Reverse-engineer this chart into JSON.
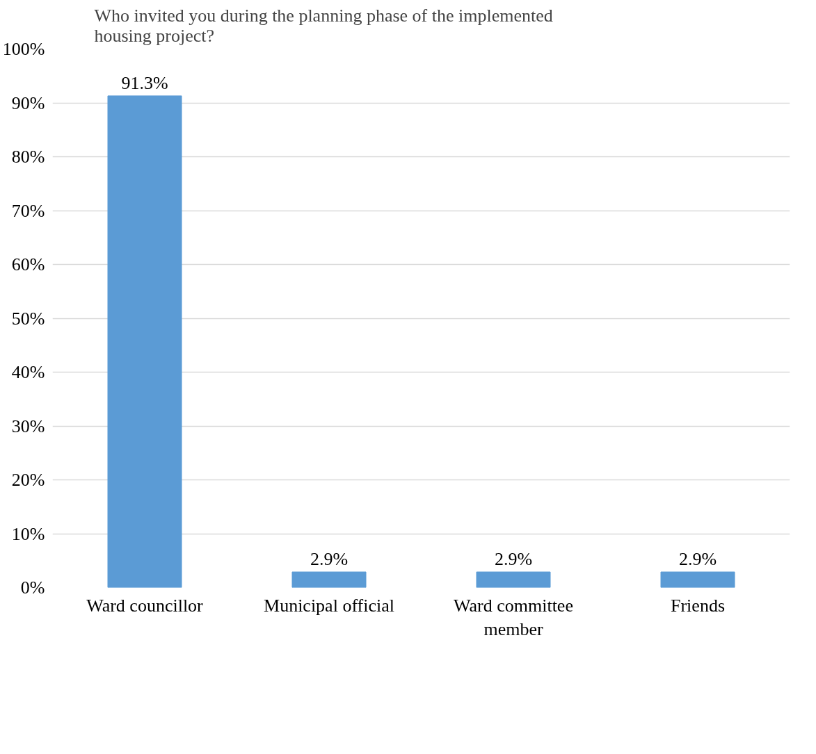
{
  "chart_data": {
    "type": "bar",
    "title": "Who invited you during the planning phase of the implemented housing project?",
    "categories": [
      "Ward councillor",
      "Municipal official",
      "Ward committee member",
      "Friends"
    ],
    "values": [
      91.3,
      2.9,
      2.9,
      2.9
    ],
    "color": "#5b9bd5",
    "value_labels": [
      "91.3%",
      "2.9%",
      "2.9%",
      "2.9%"
    ],
    "ylim": [
      0,
      100
    ],
    "yticks": [
      {
        "value": 0,
        "label": "0%"
      },
      {
        "value": 10,
        "label": "10%"
      },
      {
        "value": 20,
        "label": "20%"
      },
      {
        "value": 30,
        "label": "30%"
      },
      {
        "value": 40,
        "label": "40%"
      },
      {
        "value": 50,
        "label": "50%"
      },
      {
        "value": 60,
        "label": "60%"
      },
      {
        "value": 70,
        "label": "70%"
      },
      {
        "value": 80,
        "label": "80%"
      },
      {
        "value": 90,
        "label": "90%"
      },
      {
        "value": 100,
        "label": "100%"
      }
    ],
    "grid": "y"
  }
}
